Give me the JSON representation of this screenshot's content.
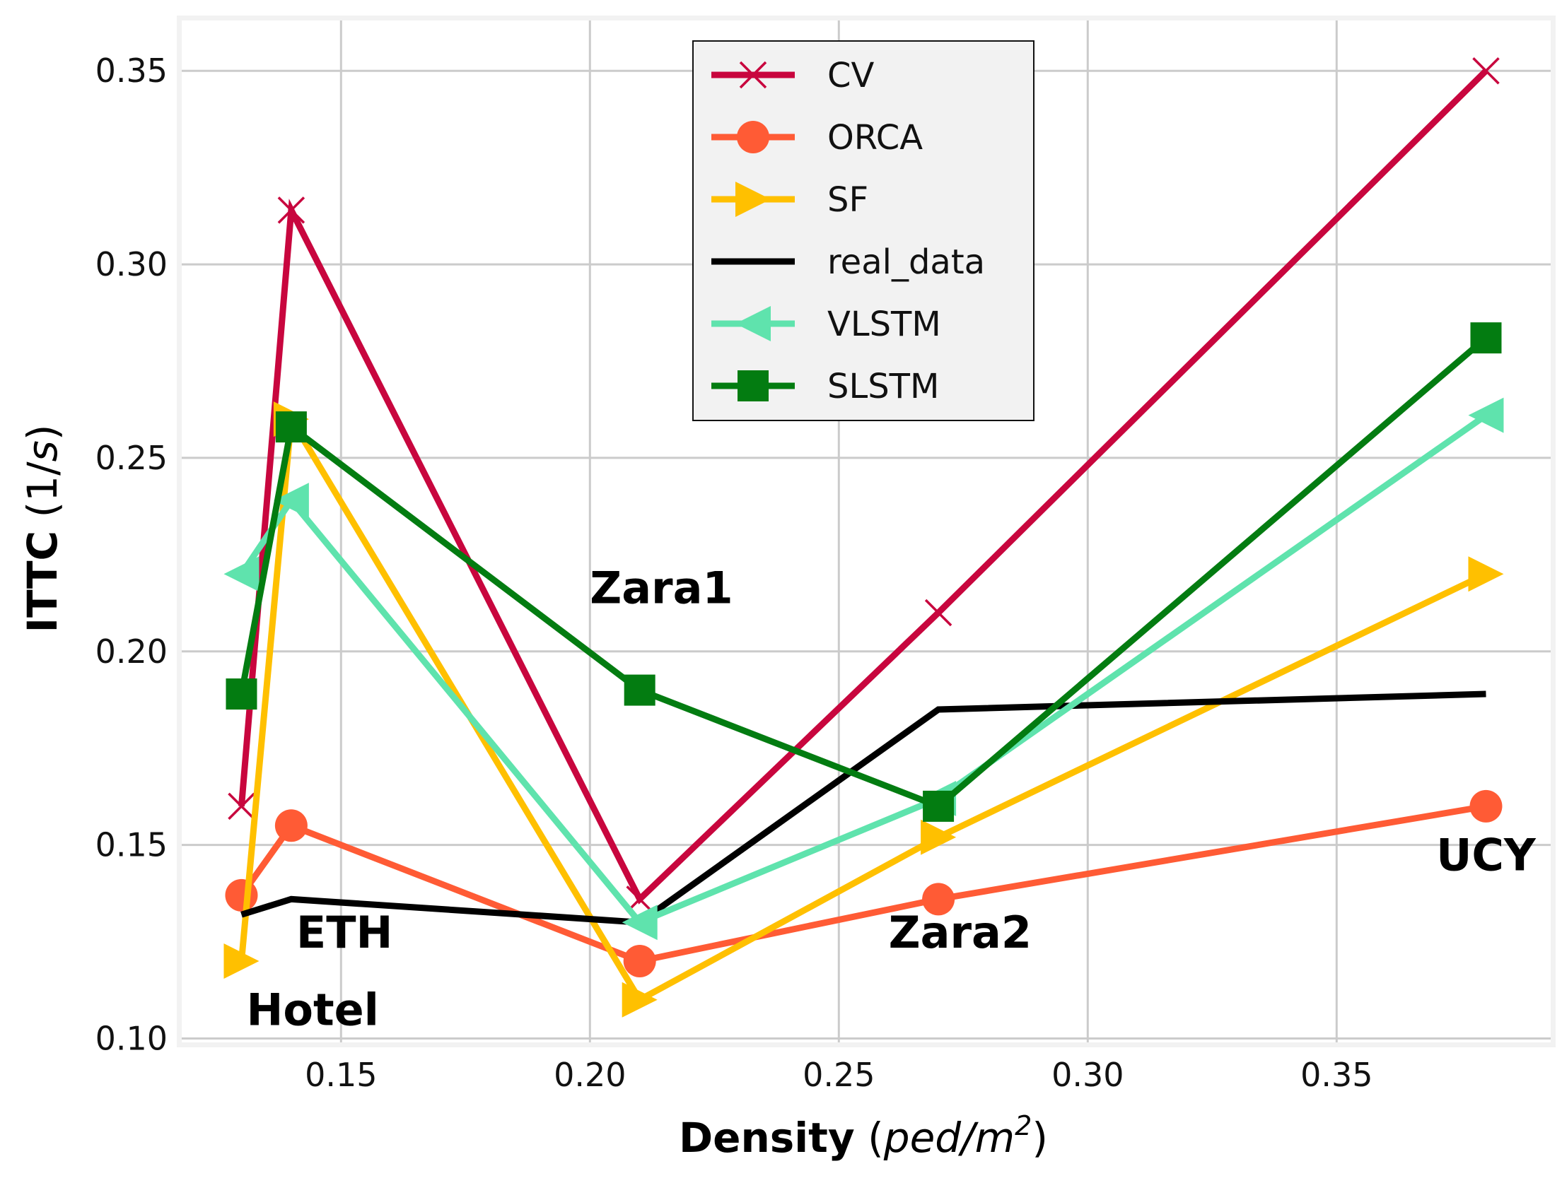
{
  "chart_data": {
    "type": "line",
    "title": "",
    "xlabel": {
      "bold": "Density",
      "unit_prefix": "(",
      "unit_italic": "ped/m",
      "unit_sup": "2",
      "unit_suffix": ")"
    },
    "ylabel": {
      "bold": "ITTC",
      "unit_prefix": "(1/",
      "unit_italic": "s",
      "unit_suffix": ")"
    },
    "xlim": [
      0.118,
      0.393
    ],
    "ylim": [
      0.099,
      0.363
    ],
    "xticks": [
      0.15,
      0.2,
      0.25,
      0.3,
      0.35
    ],
    "xtick_labels": [
      "0.15",
      "0.20",
      "0.25",
      "0.30",
      "0.35"
    ],
    "yticks": [
      0.1,
      0.15,
      0.2,
      0.25,
      0.3,
      0.35
    ],
    "ytick_labels": [
      "0.10",
      "0.15",
      "0.20",
      "0.25",
      "0.30",
      "0.35"
    ],
    "grid": true,
    "legend_position": "top-center",
    "x": [
      0.13,
      0.14,
      0.21,
      0.27,
      0.38
    ],
    "series": [
      {
        "name": "CV",
        "color": "#c8063e",
        "marker": "x",
        "values": [
          0.16,
          0.314,
          0.136,
          0.21,
          0.35
        ]
      },
      {
        "name": "ORCA",
        "color": "#ff5b35",
        "marker": "circle",
        "values": [
          0.137,
          0.155,
          0.12,
          0.136,
          0.16
        ]
      },
      {
        "name": "SF",
        "color": "#ffc000",
        "marker": "triangle-right",
        "values": [
          0.12,
          0.26,
          0.11,
          0.152,
          0.22
        ]
      },
      {
        "name": "real_data",
        "color": "#000000",
        "marker": "none",
        "values": [
          0.132,
          0.136,
          0.13,
          0.185,
          0.189
        ]
      },
      {
        "name": "VLSTM",
        "color": "#5fe3ad",
        "marker": "triangle-left",
        "values": [
          0.22,
          0.239,
          0.13,
          0.162,
          0.261
        ]
      },
      {
        "name": "SLSTM",
        "color": "#037c11",
        "marker": "square",
        "values": [
          0.189,
          0.258,
          0.19,
          0.16,
          0.281
        ]
      }
    ],
    "annotations": [
      {
        "text": "Hotel",
        "x": 0.131,
        "y": 0.1035
      },
      {
        "text": "ETH",
        "x": 0.141,
        "y": 0.1235
      },
      {
        "text": "Zara1",
        "x": 0.2,
        "y": 0.2125
      },
      {
        "text": "Zara2",
        "x": 0.26,
        "y": 0.1235
      },
      {
        "text": "UCY",
        "x": 0.37,
        "y": 0.1435
      }
    ]
  }
}
